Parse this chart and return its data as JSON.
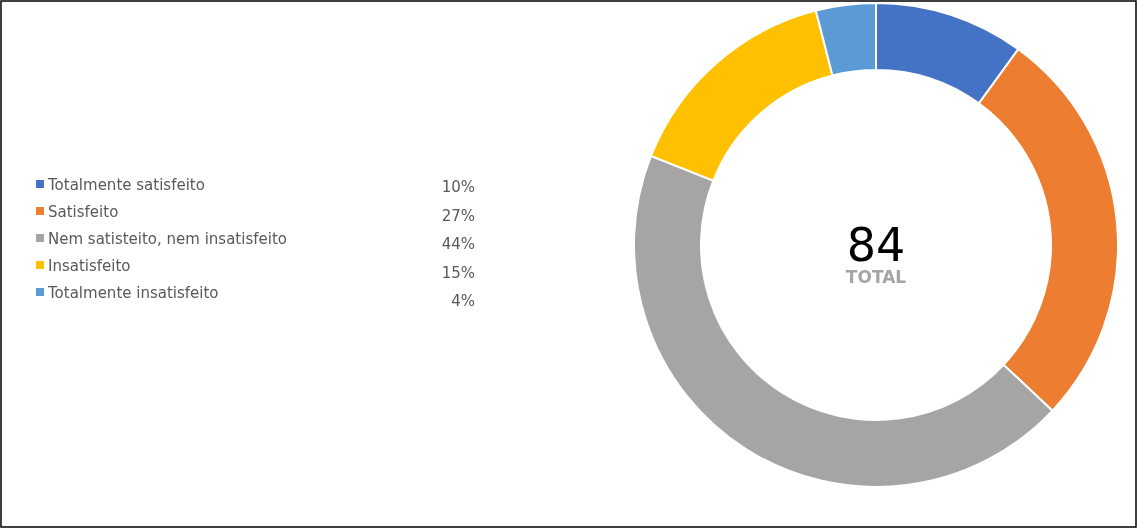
{
  "chart_data": {
    "type": "donut",
    "categories": [
      "Totalmente satisfeito",
      "Satisfeito",
      "Nem satisteito, nem insatisfeito",
      "Insatisfeito",
      "Totalmente insatisfeito"
    ],
    "values": [
      10,
      27,
      44,
      15,
      4
    ],
    "colors": [
      "#4472c4",
      "#ed7d31",
      "#a5a5a5",
      "#ffc000",
      "#5b9bd5"
    ],
    "value_labels": [
      "10%",
      "27%",
      "44%",
      "15%",
      "4%"
    ],
    "annotations": [
      "84",
      "TOTAL"
    ],
    "legend": "left"
  }
}
